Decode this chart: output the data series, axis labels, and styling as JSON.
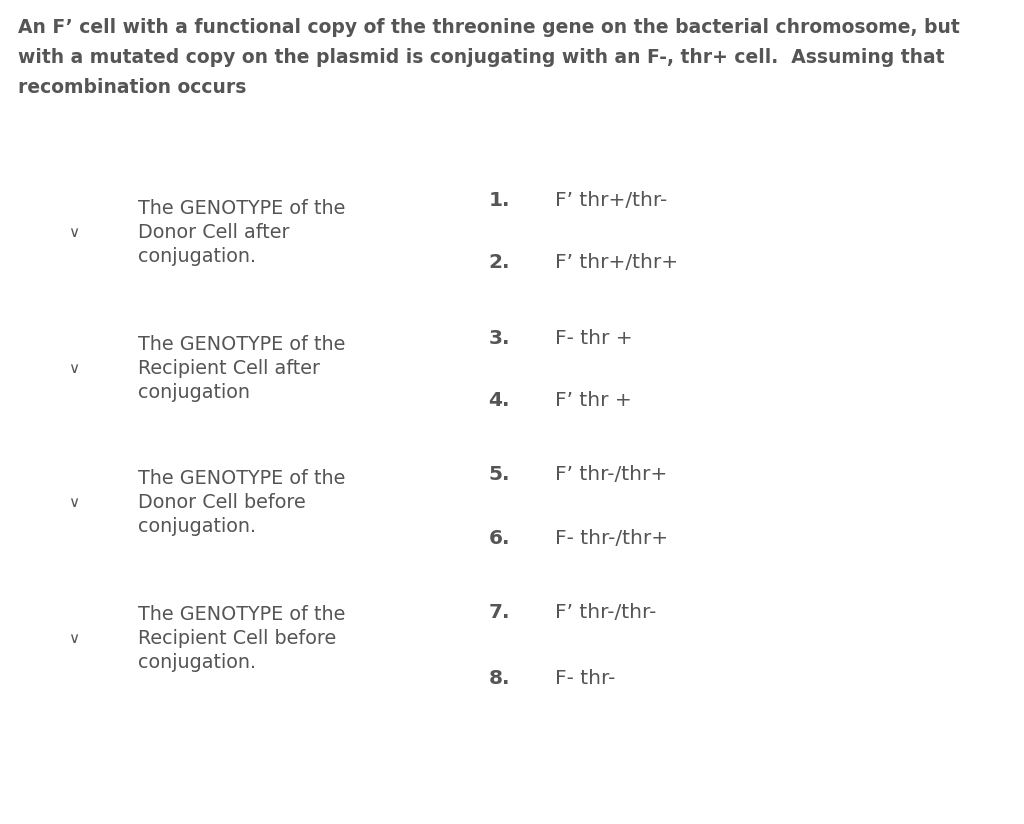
{
  "background_color": "#ffffff",
  "title_lines": [
    "An F’ cell with a functional copy of the threonine gene on the bacterial chromosome, but",
    "with a mutated copy on the plasmid is conjugating with an F-, thr+ cell.  Assuming that",
    "recombination occurs"
  ],
  "title_fontsize": 13.5,
  "dropdown_labels": [
    "The GENOTYPE of the\nDonor Cell after\nconjugation.",
    "The GENOTYPE of the\nRecipient Cell after\nconjugation",
    "The GENOTYPE of the\nDonor Cell before\nconjugation.",
    "The GENOTYPE of the\nRecipient Cell before\nconjugation."
  ],
  "option_numbers": [
    "1.",
    "2.",
    "3.",
    "4.",
    "5.",
    "6.",
    "7.",
    "8."
  ],
  "option_texts": [
    "F’ thr+/thr-",
    "F’ thr+/thr+",
    "F- thr +",
    "F’ thr +",
    "F’ thr-/thr+",
    "F- thr-/thr+",
    "F’ thr-/thr-",
    "F- thr-"
  ],
  "text_color": "#555555",
  "box_edge_color": "#b0b0b0",
  "box_fill": "#ffffff",
  "label_fontsize": 13.8,
  "option_fontsize": 14.5,
  "chevron_char": "∨",
  "chevron_fontsize": 11
}
